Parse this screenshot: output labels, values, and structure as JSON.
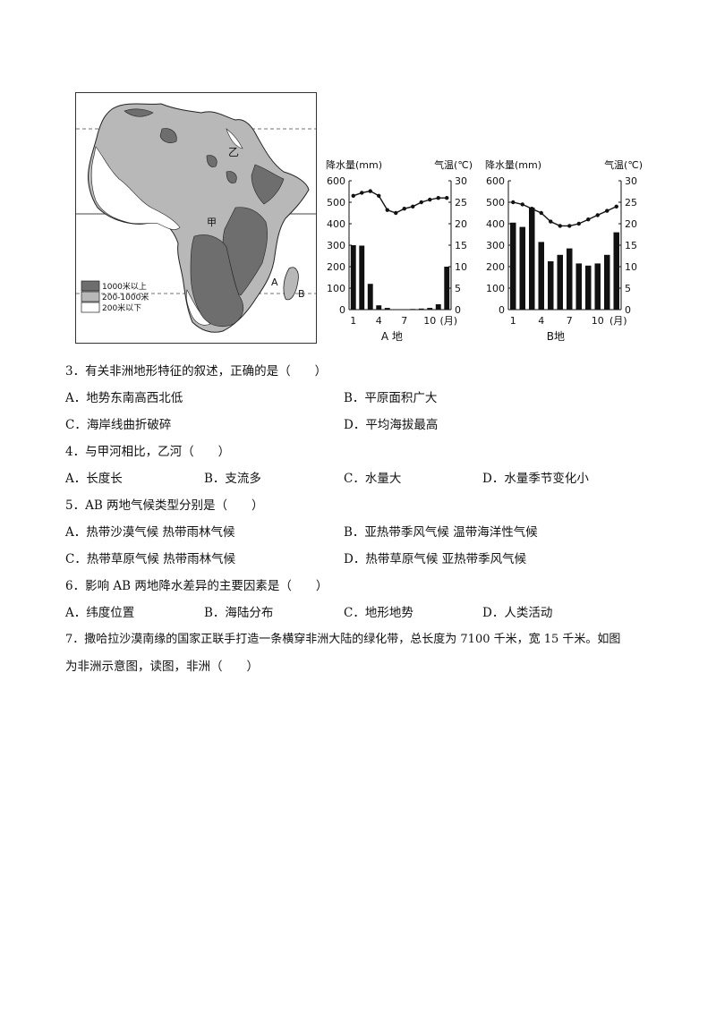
{
  "map": {
    "label_yi": "乙",
    "label_jia": "甲",
    "label_a": "A",
    "label_b": "B",
    "legend": [
      "1000米以上",
      "200-1000米",
      "200米以下"
    ],
    "colors": {
      "high": "#6e6e6e",
      "mid": "#b8b8b8",
      "low": "#ffffff"
    }
  },
  "chart_data": [
    {
      "type": "bar",
      "place_label": "A 地",
      "left_axis_title": "降水量(mm)",
      "right_axis_title": "气温(℃)",
      "precip_ticks": [
        "600",
        "500",
        "400",
        "300",
        "200",
        "100",
        "0"
      ],
      "temp_ticks": [
        "30",
        "25",
        "20",
        "15",
        "10",
        "5",
        "0"
      ],
      "x_ticks": [
        "1",
        "4",
        "7",
        "10",
        "(月)"
      ],
      "months": [
        1,
        2,
        3,
        4,
        5,
        6,
        7,
        8,
        9,
        10,
        11,
        12
      ],
      "precip": [
        300,
        298,
        120,
        20,
        8,
        2,
        2,
        3,
        5,
        8,
        25,
        200
      ],
      "temp": [
        26.5,
        27.2,
        27.6,
        26.5,
        23.2,
        22.5,
        23.5,
        24,
        25,
        25.6,
        26,
        26
      ],
      "ylim_precip": [
        0,
        600
      ],
      "ylim_temp": [
        0,
        30
      ]
    },
    {
      "type": "bar",
      "place_label": "B地",
      "left_axis_title": "降水量(mm)",
      "right_axis_title": "气温(℃)",
      "precip_ticks": [
        "600",
        "500",
        "400",
        "300",
        "200",
        "100",
        "0"
      ],
      "temp_ticks": [
        "30",
        "25",
        "20",
        "15",
        "10",
        "5",
        "0"
      ],
      "x_ticks": [
        "1",
        "4",
        "7",
        "10",
        "(月)"
      ],
      "months": [
        1,
        2,
        3,
        4,
        5,
        6,
        7,
        8,
        9,
        10,
        11,
        12
      ],
      "precip": [
        405,
        385,
        475,
        315,
        225,
        255,
        285,
        215,
        205,
        215,
        255,
        360
      ],
      "temp": [
        25,
        24.5,
        23.5,
        22.5,
        20.5,
        19.5,
        19.5,
        20,
        21,
        22,
        23,
        24
      ],
      "ylim_precip": [
        0,
        600
      ],
      "ylim_temp": [
        0,
        30
      ]
    }
  ],
  "questions": [
    {
      "text": "3．有关非洲地形特征的叙述，正确的是（　　）",
      "options": [
        "A．地势东南高西北低",
        "B．平原面积广大",
        "C．海岸线曲折破碎",
        "D．平均海拔最高"
      ]
    },
    {
      "text": "4．与甲河相比，乙河（　　）",
      "options": [
        "A．长度长",
        "B．支流多",
        "C．水量大",
        "D．水量季节变化小"
      ]
    },
    {
      "text": "5．AB 两地气候类型分别是（　　）",
      "options": [
        "A．热带沙漠气候  热带雨林气候",
        "B．亚热带季风气候  温带海洋性气候",
        "C．热带草原气候  热带雨林气候",
        "D．热带草原气候   亚热带季风气候"
      ]
    },
    {
      "text": "6．影响 AB 两地降水差异的主要因素是（　　）",
      "options": [
        "A．纬度位置",
        "B．海陆分布",
        "C．地形地势",
        "D．人类活动"
      ]
    },
    {
      "text_line1": "7．撒哈拉沙漠南缘的国家正联手打造一条横穿非洲大陆的绿化带，总长度为 7100 千米，宽 15 千米。如图",
      "text_line2": "为非洲示意图，读图，非洲（　　）"
    }
  ]
}
